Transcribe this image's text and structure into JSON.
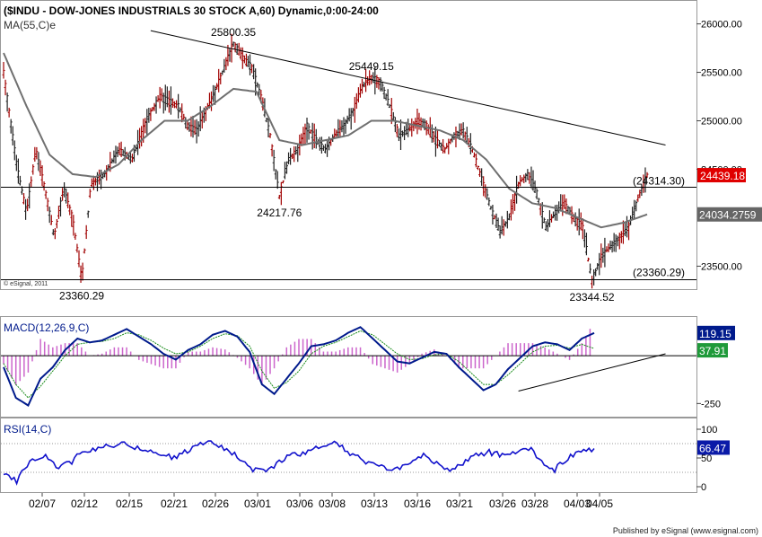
{
  "header": {
    "title": "($INDU - DOW-JONES INDUSTRIALS 30 STOCK A,60) Dynamic,0:00-24:00",
    "ma_label": "MA(55,C)e",
    "copyright": "© eSignal, 2011"
  },
  "footer": {
    "published": "Published by eSignal (www.esignal.com)"
  },
  "colors": {
    "price_bar": "#a00000",
    "price_bar_dark": "#202020",
    "ma_line": "#707070",
    "macd_line": "#001a8c",
    "signal_line": "#1a8c1a",
    "histogram": "#cc66cc",
    "rsi_line": "#1111cc",
    "last_price_bg": "#e00000",
    "ma_price_bg": "#666666",
    "macd_label_bg": "#001a8c",
    "signal_label_bg": "#1f9a3a",
    "rsi_label_bg": "#0a1aa8"
  },
  "chart_data": [
    {
      "type": "candlestick",
      "panel": "price",
      "title": "($INDU - DOW-JONES INDUSTRIALS 30 STOCK A,60) Dynamic,0:00-24:00",
      "ylim": [
        23300,
        26200
      ],
      "y_ticks": [
        "26000.00",
        "25500.00",
        "25000.00",
        "24500.00",
        "23500.00"
      ],
      "x_ticks": [
        "02/07",
        "02/12",
        "02/15",
        "02/21",
        "02/26",
        "03/01",
        "03/06",
        "03/08",
        "03/13",
        "03/16",
        "03/21",
        "03/26",
        "03/28",
        "04/03",
        "04/05"
      ],
      "series": [
        {
          "name": "MA(55,C)e",
          "values": []
        }
      ],
      "price_path": [
        [
          0,
          25500
        ],
        [
          3,
          24500
        ],
        [
          5,
          24050
        ],
        [
          7,
          24700
        ],
        [
          9,
          24300
        ],
        [
          11,
          23800
        ],
        [
          13,
          24300
        ],
        [
          15,
          24000
        ],
        [
          17,
          23360.29
        ],
        [
          19,
          24350
        ],
        [
          22,
          24450
        ],
        [
          25,
          24700
        ],
        [
          28,
          24600
        ],
        [
          31,
          25000
        ],
        [
          34,
          25250
        ],
        [
          36,
          25200
        ],
        [
          38,
          25150
        ],
        [
          40,
          24950
        ],
        [
          42,
          24900
        ],
        [
          44,
          25100
        ],
        [
          46,
          25300
        ],
        [
          48,
          25550
        ],
        [
          50,
          25800.35
        ],
        [
          52,
          25650
        ],
        [
          54,
          25550
        ],
        [
          56,
          25250
        ],
        [
          58,
          24850
        ],
        [
          60,
          24217.76
        ],
        [
          62,
          24600
        ],
        [
          64,
          24700
        ],
        [
          66,
          24950
        ],
        [
          68,
          24800
        ],
        [
          70,
          24700
        ],
        [
          72,
          24850
        ],
        [
          74,
          24950
        ],
        [
          76,
          25100
        ],
        [
          78,
          25350
        ],
        [
          80,
          25449.15
        ],
        [
          82,
          25400
        ],
        [
          84,
          25150
        ],
        [
          86,
          24850
        ],
        [
          88,
          24900
        ],
        [
          90,
          25000
        ],
        [
          92,
          24950
        ],
        [
          94,
          24800
        ],
        [
          96,
          24700
        ],
        [
          98,
          24850
        ],
        [
          100,
          24900
        ],
        [
          102,
          24700
        ],
        [
          104,
          24400
        ],
        [
          106,
          24100
        ],
        [
          108,
          23850
        ],
        [
          110,
          24000
        ],
        [
          112,
          24350
        ],
        [
          114,
          24450
        ],
        [
          116,
          24250
        ],
        [
          118,
          23900
        ],
        [
          120,
          24050
        ],
        [
          122,
          24150
        ],
        [
          124,
          24000
        ],
        [
          126,
          23900
        ],
        [
          128,
          23344.52
        ],
        [
          130,
          23600
        ],
        [
          132,
          23700
        ],
        [
          134,
          23800
        ],
        [
          136,
          23900
        ],
        [
          138,
          24200
        ],
        [
          140,
          24439.18
        ]
      ],
      "ma_path": [
        [
          0,
          25700
        ],
        [
          5,
          25150
        ],
        [
          10,
          24650
        ],
        [
          15,
          24450
        ],
        [
          20,
          24420
        ],
        [
          25,
          24550
        ],
        [
          30,
          24800
        ],
        [
          35,
          25000
        ],
        [
          40,
          25000
        ],
        [
          45,
          25150
        ],
        [
          50,
          25330
        ],
        [
          55,
          25300
        ],
        [
          58,
          25000
        ],
        [
          60,
          24800
        ],
        [
          65,
          24750
        ],
        [
          70,
          24800
        ],
        [
          75,
          24850
        ],
        [
          80,
          25000
        ],
        [
          85,
          25000
        ],
        [
          90,
          24950
        ],
        [
          95,
          24900
        ],
        [
          100,
          24800
        ],
        [
          105,
          24600
        ],
        [
          110,
          24300
        ],
        [
          115,
          24150
        ],
        [
          120,
          24100
        ],
        [
          125,
          24000
        ],
        [
          130,
          23900
        ],
        [
          135,
          23950
        ],
        [
          140,
          24034.2759
        ]
      ],
      "annotations": [
        {
          "text": "25800.35",
          "x": 50,
          "y": 25800.35
        },
        {
          "text": "25449.15",
          "x": 80,
          "y": 25449.15
        },
        {
          "text": "24217.76",
          "x": 60,
          "y": 24217.76
        },
        {
          "text": "23360.29",
          "x": 17,
          "y": 23360.29
        },
        {
          "text": "23344.52",
          "x": 128,
          "y": 23344.52
        },
        {
          "text": "(24314.30)",
          "x": 148,
          "y": 24314.3
        },
        {
          "text": "(23360.29)",
          "x": 148,
          "y": 23360.29
        }
      ],
      "horizontal_lines": [
        24314.3,
        23360.29
      ],
      "trend_line": {
        "from": [
          32,
          25930
        ],
        "to": [
          144,
          24750
        ]
      },
      "price_labels": {
        "last": "24439.18",
        "ma": "24034.2759"
      }
    },
    {
      "type": "line",
      "panel": "macd",
      "label": "MACD(12,26,9,C)",
      "y_ticks": [
        "-250"
      ],
      "series": [
        {
          "name": "MACD",
          "values": [
            -60,
            -220,
            -260,
            -120,
            -60,
            30,
            90,
            70,
            80,
            110,
            140,
            100,
            60,
            10,
            -20,
            30,
            60,
            110,
            130,
            100,
            20,
            -150,
            -200,
            -120,
            -40,
            50,
            60,
            80,
            120,
            150,
            90,
            30,
            -30,
            -40,
            -10,
            20,
            10,
            -60,
            -120,
            -180,
            -150,
            -70,
            -10,
            50,
            70,
            60,
            30,
            90,
            119.15
          ]
        },
        {
          "name": "Signal",
          "values": [
            -40,
            -150,
            -220,
            -160,
            -80,
            0,
            60,
            70,
            75,
            90,
            120,
            110,
            80,
            40,
            10,
            20,
            50,
            90,
            115,
            105,
            50,
            -80,
            -170,
            -140,
            -80,
            10,
            50,
            70,
            100,
            130,
            110,
            60,
            10,
            -20,
            -15,
            5,
            10,
            -30,
            -90,
            -150,
            -150,
            -100,
            -40,
            20,
            50,
            55,
            40,
            60,
            37.91
          ]
        }
      ],
      "last_values": {
        "macd": "119.15",
        "signal": "37.91"
      },
      "trend_line": {
        "from": [
          112,
          -185
        ],
        "to": [
          144,
          10
        ]
      }
    },
    {
      "type": "line",
      "panel": "rsi",
      "label": "RSI(14,C)",
      "y_ticks": [
        "100",
        "50",
        "0"
      ],
      "ylim": [
        0,
        100
      ],
      "reference_lines": [
        75,
        25
      ],
      "series": [
        {
          "name": "RSI",
          "values": [
            20,
            10,
            45,
            55,
            35,
            40,
            60,
            65,
            70,
            75,
            70,
            60,
            55,
            50,
            62,
            72,
            78,
            65,
            50,
            30,
            25,
            45,
            55,
            60,
            70,
            78,
            65,
            50,
            40,
            35,
            30,
            45,
            55,
            40,
            30,
            40,
            55,
            60,
            55,
            58,
            68,
            45,
            30,
            50,
            60,
            66.47
          ]
        }
      ],
      "last_value": "66.47"
    }
  ]
}
